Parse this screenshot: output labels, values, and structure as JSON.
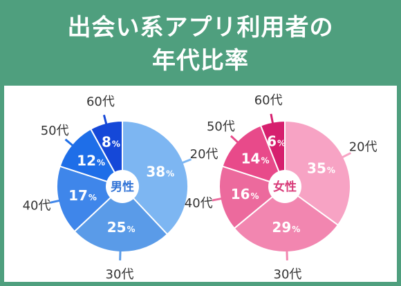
{
  "header": {
    "title_line1": "出会い系アプリ利用者の",
    "title_line2": "年代比率"
  },
  "chart_data": [
    {
      "type": "pie",
      "center_label": "男性",
      "categories": [
        "20代",
        "30代",
        "40代",
        "50代",
        "60代"
      ],
      "values": [
        38,
        25,
        17,
        12,
        8
      ],
      "unit": "%",
      "colors": [
        "#7db6f2",
        "#5a9be8",
        "#3f86ea",
        "#1e6ee8",
        "#1548d8"
      ]
    },
    {
      "type": "pie",
      "center_label": "女性",
      "categories": [
        "20代",
        "30代",
        "40代",
        "50代",
        "60代"
      ],
      "values": [
        35,
        29,
        16,
        14,
        6
      ],
      "unit": "%",
      "colors": [
        "#f7a3c4",
        "#f286b0",
        "#ec6a9d",
        "#e84a8a",
        "#d61f6e"
      ]
    }
  ]
}
